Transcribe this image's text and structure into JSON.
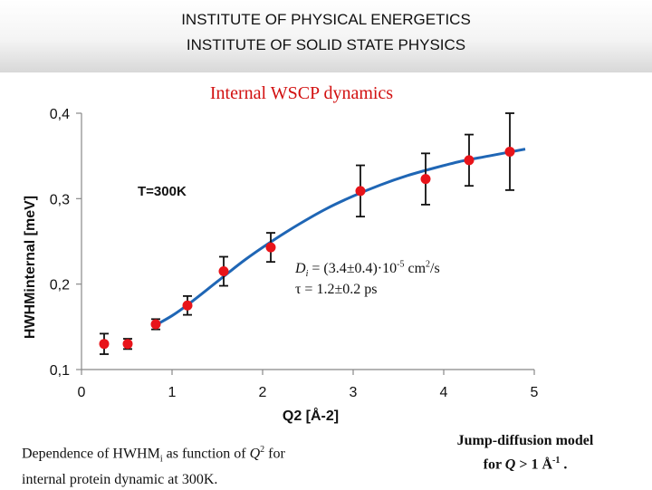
{
  "header": {
    "line1": "INSTITUTE OF PHYSICAL ENERGETICS",
    "line2": "INSTITUTE OF SOLID STATE PHYSICS"
  },
  "chart_data": {
    "type": "scatter",
    "title": "Internal WSCP dynamics",
    "xlabel": "Q2 [Å-2]",
    "ylabel": "HWHMinternal  [meV]",
    "xlim": [
      0,
      5
    ],
    "ylim": [
      0.1,
      0.4
    ],
    "xticks": [
      "0",
      "1",
      "2",
      "3",
      "4",
      "5"
    ],
    "yticks": [
      "0,1",
      "0,2",
      "0,3",
      "0,4"
    ],
    "annotation_temperature": "T=300K",
    "annotation_fit_line1": "Di = (3.4±0.4)·10-5 cm2/s",
    "annotation_fit_line2": "τ = 1.2±0.2 ps",
    "series": [
      {
        "name": "data",
        "color": "#e8141a",
        "x": [
          0.25,
          0.51,
          0.82,
          1.17,
          1.57,
          2.09,
          3.08,
          3.8,
          4.28,
          4.73
        ],
        "y": [
          0.13,
          0.13,
          0.153,
          0.175,
          0.215,
          0.243,
          0.309,
          0.323,
          0.345,
          0.355
        ],
        "err": [
          0.012,
          0.006,
          0.006,
          0.011,
          0.017,
          0.017,
          0.03,
          0.03,
          0.03,
          0.045
        ]
      },
      {
        "name": "fit",
        "color": "#1f66b5",
        "x": [
          0.8,
          1.0,
          1.2,
          1.5,
          1.8,
          2.1,
          2.4,
          2.7,
          3.0,
          3.3,
          3.6,
          3.9,
          4.2,
          4.5,
          4.9
        ],
        "y": [
          0.151,
          0.163,
          0.178,
          0.203,
          0.228,
          0.25,
          0.27,
          0.288,
          0.303,
          0.316,
          0.327,
          0.336,
          0.344,
          0.35,
          0.358
        ]
      }
    ]
  },
  "captions": {
    "left_line1_prefix": "Dependence of  HWHM",
    "left_line1_sub": "i",
    "left_line1_mid": " as function of ",
    "left_line1_q": "Q",
    "left_line1_sup": "2",
    "left_line1_suffix": " for",
    "left_line2": "internal protein dynamic at 300K.",
    "right_line1": "Jump-diffusion model",
    "right_line2_prefix": "for ",
    "right_line2_q": "Q",
    "right_line2_mid": " > 1 Å",
    "right_line2_sup": "-1",
    "right_line2_suffix": " ."
  }
}
